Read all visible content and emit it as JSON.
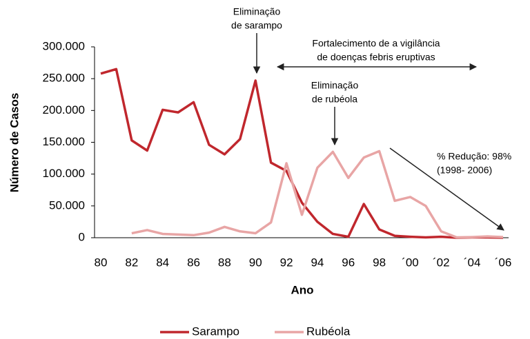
{
  "chart_data": {
    "type": "line",
    "xlabel": "Ano",
    "ylabel": "Número de Casos",
    "categories": [
      "80",
      null,
      "82",
      null,
      "84",
      null,
      "86",
      null,
      "88",
      null,
      "90",
      null,
      "92",
      null,
      "94",
      null,
      "96",
      null,
      "98",
      null,
      "´00",
      null,
      "´02",
      null,
      "´04",
      null,
      "´06"
    ],
    "series": [
      {
        "name": "Sarampo",
        "color": "#c0272d",
        "values": [
          258000,
          265000,
          153000,
          137000,
          201000,
          197000,
          213000,
          146000,
          131000,
          155000,
          247000,
          118000,
          105000,
          55000,
          25000,
          6000,
          1500,
          53000,
          13000,
          3000,
          1500,
          500,
          1500,
          0,
          500,
          500,
          0
        ]
      },
      {
        "name": "Rubéola",
        "color": "#e8a5a5",
        "values": [
          null,
          null,
          7000,
          12000,
          6000,
          5000,
          4000,
          8000,
          17000,
          10000,
          7000,
          24000,
          117000,
          36000,
          110000,
          135000,
          94000,
          126000,
          136000,
          58000,
          64000,
          50000,
          10000,
          500,
          1000,
          2000,
          1000
        ]
      }
    ],
    "ylim": [
      0,
      300000
    ],
    "yticks": [
      0,
      {
        "value": 50000,
        "label": "50.000"
      },
      {
        "value": 100000,
        "label": "100.000"
      },
      {
        "value": 150000,
        "label": "150.000"
      },
      {
        "value": 200000,
        "label": "200.000"
      },
      {
        "value": 250000,
        "label": "250.000"
      },
      {
        "value": 300000,
        "label": "300.000"
      }
    ],
    "annotations": [
      {
        "text": [
          "Eliminação",
          "de sarampo"
        ]
      },
      {
        "text": [
          "Fortalecimento de a vigilância",
          "de doenças febris eruptivas"
        ]
      },
      {
        "text": [
          "Eliminação",
          "de rubéola"
        ]
      },
      {
        "text": [
          "% Redução: 98%",
          "(1998- 2006)"
        ]
      }
    ],
    "legend": "bottom"
  }
}
